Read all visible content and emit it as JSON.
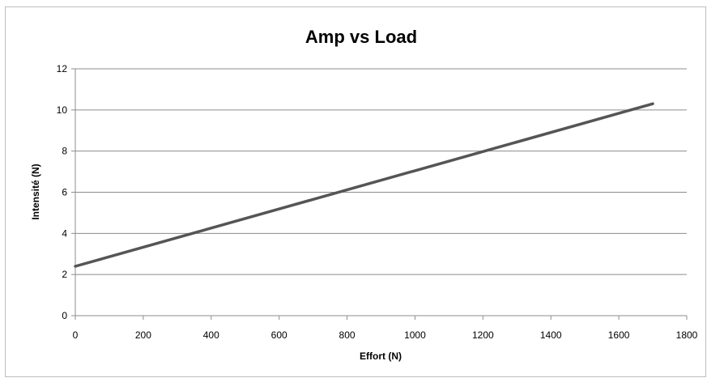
{
  "chart_data": {
    "type": "line",
    "title": "Amp vs Load",
    "xlabel": "Effort (N)",
    "ylabel": "Intensité (N)",
    "xlim": [
      0,
      1800
    ],
    "ylim": [
      0,
      12
    ],
    "x_ticks": [
      0,
      200,
      400,
      600,
      800,
      1000,
      1200,
      1400,
      1600,
      1800
    ],
    "y_ticks": [
      0,
      2,
      4,
      6,
      8,
      10,
      12
    ],
    "grid": "horizontal",
    "legend": "none",
    "series": [
      {
        "color": "#555555",
        "x": [
          0,
          1700
        ],
        "y": [
          2.4,
          10.3
        ]
      }
    ]
  }
}
